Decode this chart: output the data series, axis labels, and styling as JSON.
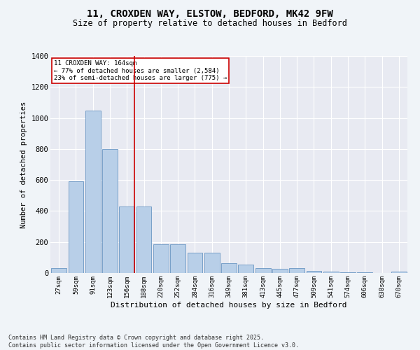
{
  "title_line1": "11, CROXDEN WAY, ELSTOW, BEDFORD, MK42 9FW",
  "title_line2": "Size of property relative to detached houses in Bedford",
  "xlabel": "Distribution of detached houses by size in Bedford",
  "ylabel": "Number of detached properties",
  "categories": [
    "27sqm",
    "59sqm",
    "91sqm",
    "123sqm",
    "156sqm",
    "188sqm",
    "220sqm",
    "252sqm",
    "284sqm",
    "316sqm",
    "349sqm",
    "381sqm",
    "413sqm",
    "445sqm",
    "477sqm",
    "509sqm",
    "541sqm",
    "574sqm",
    "606sqm",
    "638sqm",
    "670sqm"
  ],
  "values": [
    30,
    590,
    1050,
    800,
    430,
    430,
    185,
    185,
    130,
    130,
    65,
    55,
    30,
    25,
    30,
    15,
    8,
    5,
    3,
    2,
    8
  ],
  "bar_color": "#b8cfe8",
  "bar_edge_color": "#5588bb",
  "background_color": "#e8eaf2",
  "grid_color": "#ffffff",
  "annotation_text": "11 CROXDEN WAY: 164sqm\n← 77% of detached houses are smaller (2,584)\n23% of semi-detached houses are larger (775) →",
  "vline_x": 4.45,
  "vline_color": "#cc0000",
  "annotation_box_color": "#cc0000",
  "ylim": [
    0,
    1400
  ],
  "yticks": [
    0,
    200,
    400,
    600,
    800,
    1000,
    1200,
    1400
  ],
  "footnote": "Contains HM Land Registry data © Crown copyright and database right 2025.\nContains public sector information licensed under the Open Government Licence v3.0."
}
